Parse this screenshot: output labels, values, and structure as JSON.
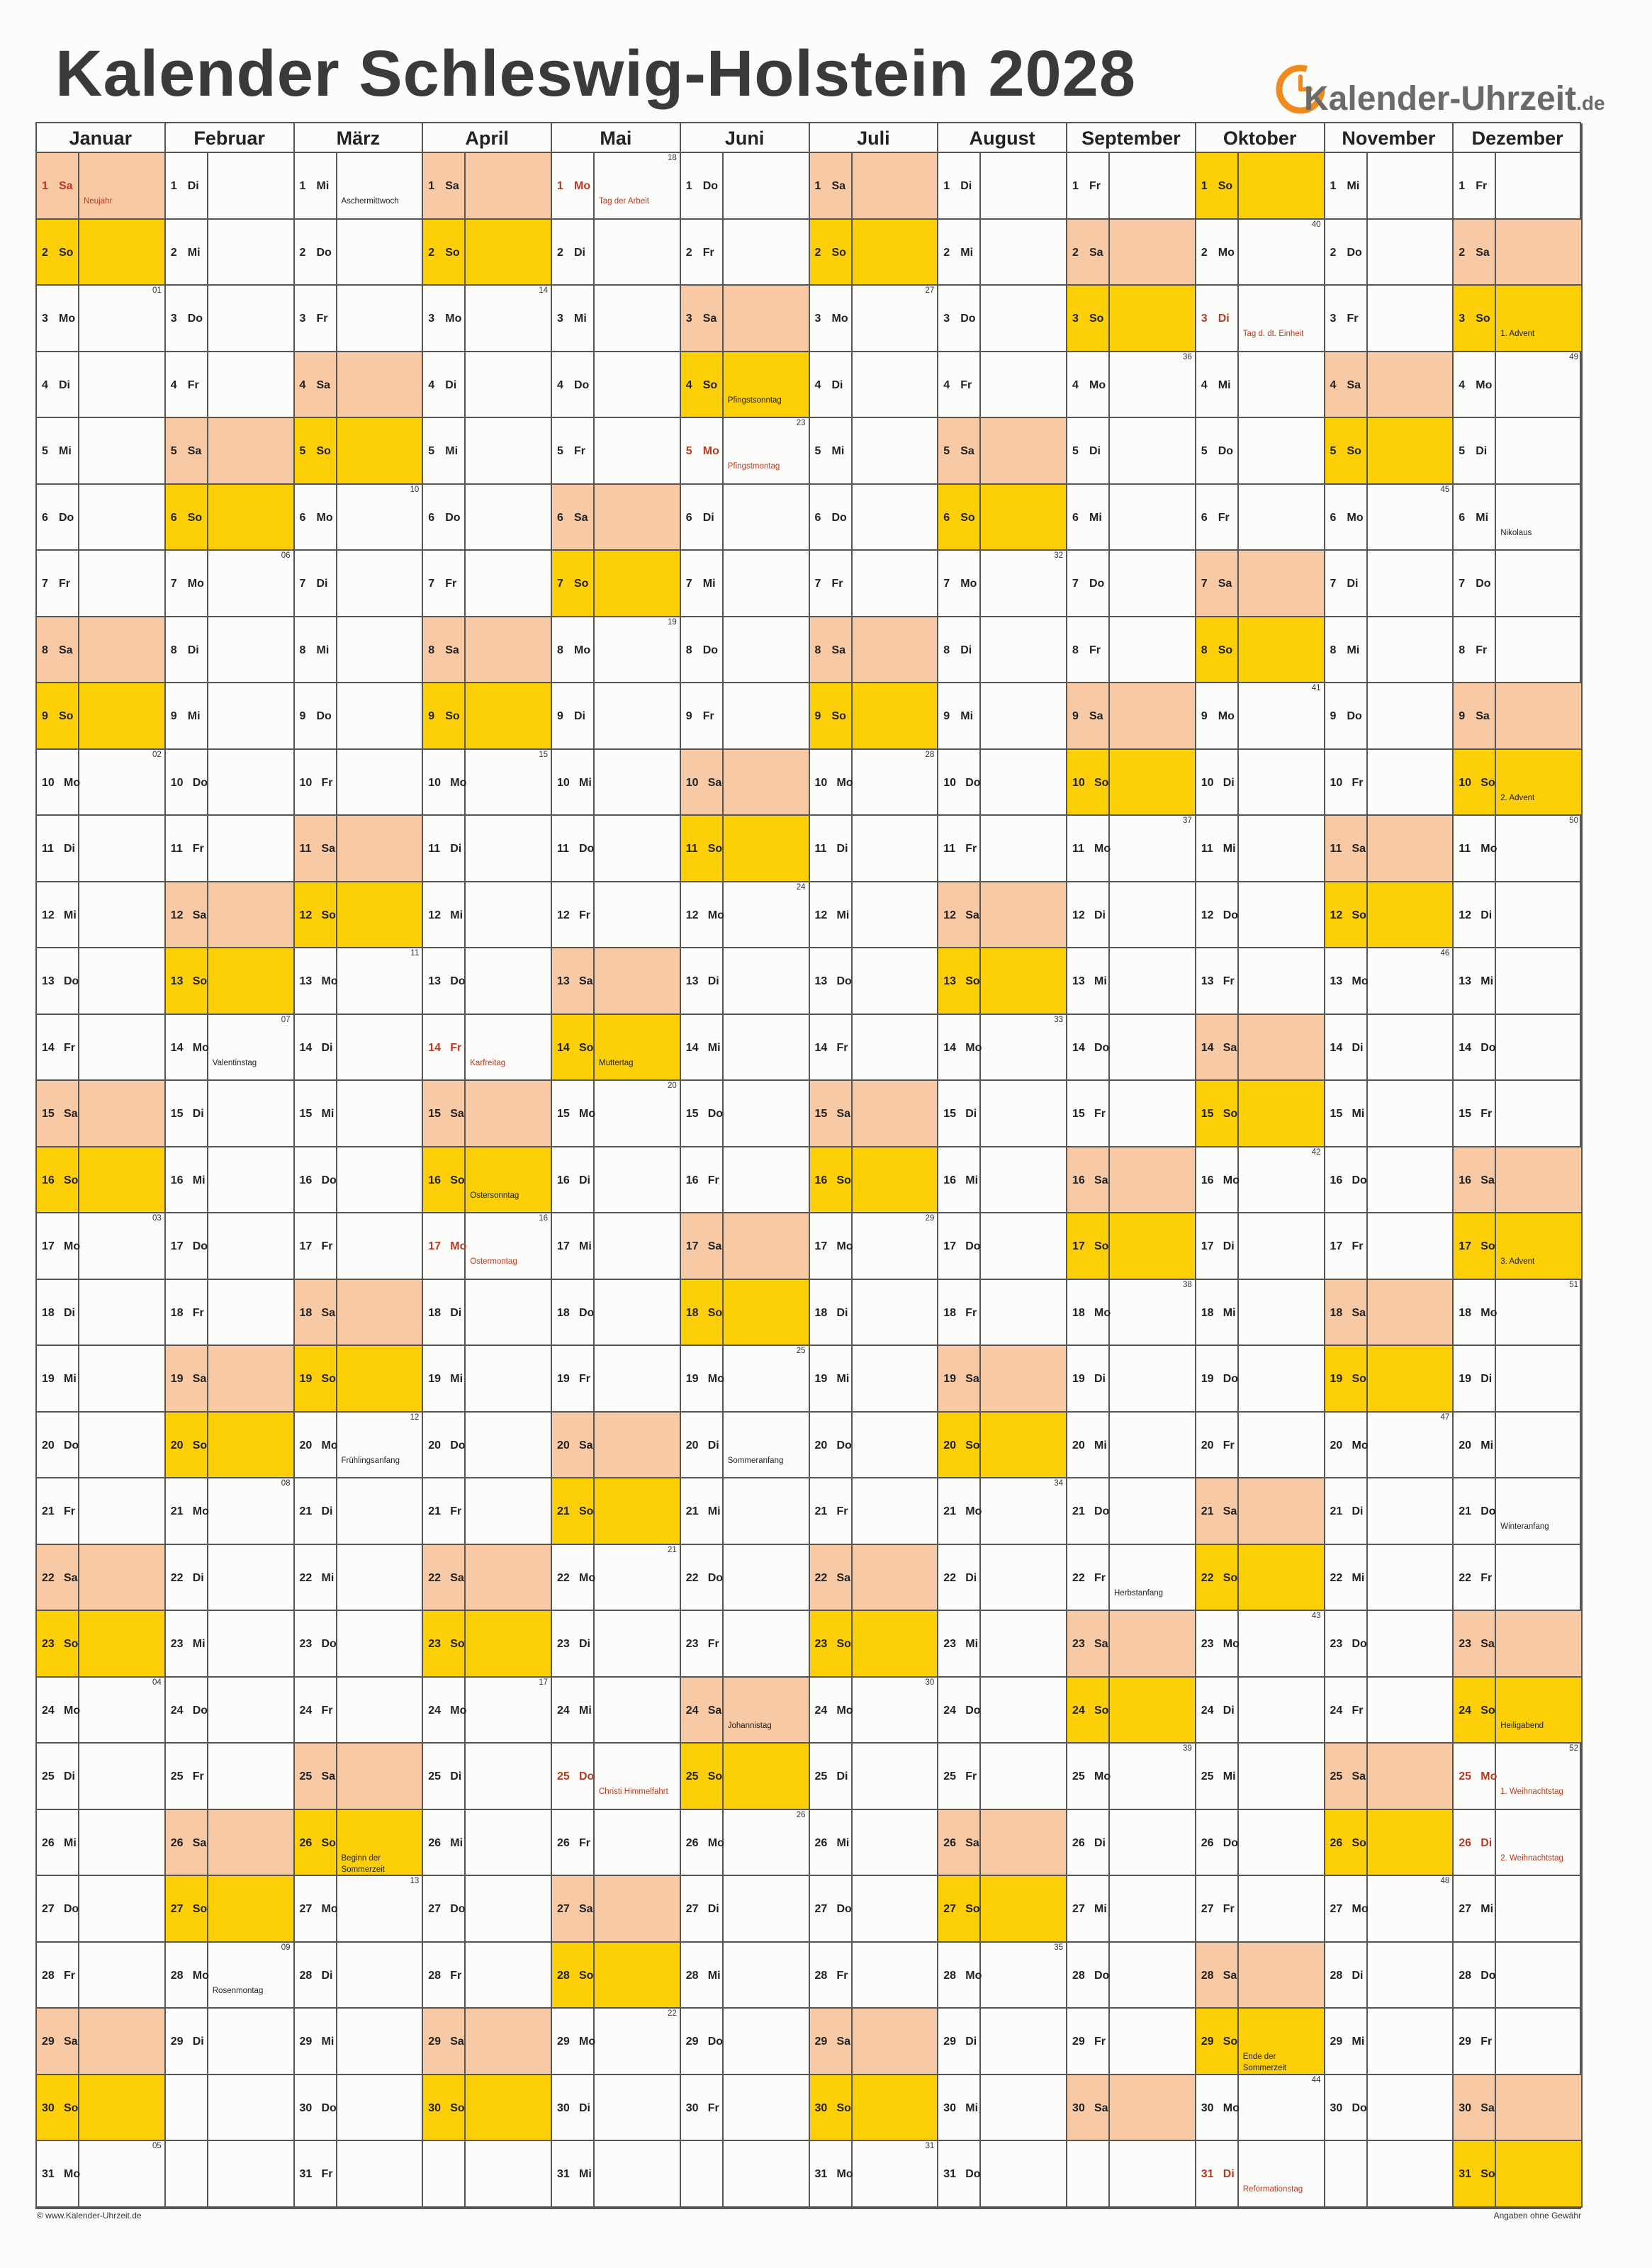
{
  "title": "Kalender Schleswig-Holstein 2028",
  "logo": {
    "text": "Kalender-Uhrzeit",
    "tld": ".de",
    "icon": "clock-icon"
  },
  "footer": {
    "left": "© www.Kalender-Uhrzeit.de",
    "right": "Angaben ohne Gewähr"
  },
  "colors": {
    "saturday": "#f7c9a5",
    "sunday": "#fccf06",
    "holiday_text": "#b83a22"
  },
  "calendar": {
    "year": 2028,
    "first_weekday": 6,
    "weekdays": [
      "Mo",
      "Di",
      "Mi",
      "Do",
      "Fr",
      "Sa",
      "So"
    ],
    "months": [
      {
        "name": "Januar",
        "days": 31
      },
      {
        "name": "Februar",
        "days": 29
      },
      {
        "name": "März",
        "days": 31
      },
      {
        "name": "April",
        "days": 30
      },
      {
        "name": "Mai",
        "days": 31
      },
      {
        "name": "Juni",
        "days": 30
      },
      {
        "name": "Juli",
        "days": 31
      },
      {
        "name": "August",
        "days": 31
      },
      {
        "name": "September",
        "days": 30
      },
      {
        "name": "Oktober",
        "days": 31
      },
      {
        "name": "November",
        "days": 30
      },
      {
        "name": "Dezember",
        "days": 31
      }
    ],
    "events": [
      {
        "m": 1,
        "d": 1,
        "text": "Neujahr",
        "holiday": true
      },
      {
        "m": 2,
        "d": 14,
        "text": "Valentinstag"
      },
      {
        "m": 2,
        "d": 28,
        "text": "Rosenmontag"
      },
      {
        "m": 3,
        "d": 1,
        "text": "Aschermittwoch"
      },
      {
        "m": 3,
        "d": 20,
        "text": "Frühlingsanfang"
      },
      {
        "m": 3,
        "d": 26,
        "text": "Beginn der Sommerzeit"
      },
      {
        "m": 4,
        "d": 14,
        "text": "Karfreitag",
        "holiday": true
      },
      {
        "m": 4,
        "d": 16,
        "text": "Ostersonntag"
      },
      {
        "m": 4,
        "d": 17,
        "text": "Ostermontag",
        "holiday": true
      },
      {
        "m": 5,
        "d": 1,
        "text": "Tag der Arbeit",
        "holiday": true
      },
      {
        "m": 5,
        "d": 14,
        "text": "Muttertag"
      },
      {
        "m": 5,
        "d": 25,
        "text": "Christi Himmelfahrt",
        "holiday": true
      },
      {
        "m": 6,
        "d": 4,
        "text": "Pfingstsonntag"
      },
      {
        "m": 6,
        "d": 5,
        "text": "Pfingstmontag",
        "holiday": true
      },
      {
        "m": 6,
        "d": 20,
        "text": "Sommeranfang"
      },
      {
        "m": 6,
        "d": 24,
        "text": "Johannistag"
      },
      {
        "m": 9,
        "d": 22,
        "text": "Herbstanfang"
      },
      {
        "m": 10,
        "d": 3,
        "text": "Tag d. dt. Einheit",
        "holiday": true
      },
      {
        "m": 10,
        "d": 29,
        "text": "Ende der Sommerzeit"
      },
      {
        "m": 10,
        "d": 31,
        "text": "Reformationstag",
        "holiday": true
      },
      {
        "m": 12,
        "d": 3,
        "text": "1. Advent"
      },
      {
        "m": 12,
        "d": 6,
        "text": "Nikolaus"
      },
      {
        "m": 12,
        "d": 10,
        "text": "2. Advent"
      },
      {
        "m": 12,
        "d": 17,
        "text": "3. Advent"
      },
      {
        "m": 12,
        "d": 21,
        "text": "Winteranfang"
      },
      {
        "m": 12,
        "d": 24,
        "text": "Heiligabend"
      },
      {
        "m": 12,
        "d": 25,
        "text": "1. Weihnachtstag",
        "holiday": true
      },
      {
        "m": 12,
        "d": 26,
        "text": "2. Weihnachtstag",
        "holiday": true
      }
    ]
  }
}
